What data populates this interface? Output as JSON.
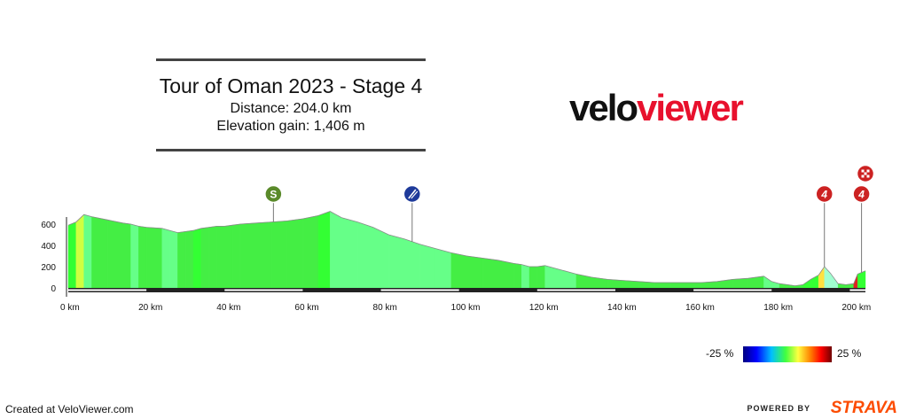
{
  "header": {
    "title": "Tour of Oman 2023 - Stage 4",
    "distance": "Distance: 204.0 km",
    "elevation_gain": "Elevation gain: 1,406 m"
  },
  "logo": {
    "part1": "velo",
    "part2": "viewer"
  },
  "legend": {
    "min_label": "-25 %",
    "max_label": "25 %"
  },
  "footer": {
    "created": "Created at VeloViewer.com",
    "powered": "POWERED BY",
    "brand": "STRAVA"
  },
  "colors": {
    "steep_climb": "#e02020",
    "flat": "#44ee44",
    "descent": "#aaffdd",
    "sprint_marker": "#5a8a2a",
    "feed_marker": "#1e3a9a",
    "kom_marker": "#cc2222"
  },
  "chart_data": {
    "type": "area",
    "title": "Tour of Oman 2023 - Stage 4",
    "xlabel": "",
    "ylabel": "",
    "xlim": [
      0,
      204
    ],
    "ylim": [
      0,
      700
    ],
    "x_ticks": [
      0,
      20,
      40,
      60,
      80,
      100,
      120,
      140,
      160,
      180,
      200
    ],
    "x_tick_labels": [
      "0 km",
      "20 km",
      "40 km",
      "60 km",
      "80 km",
      "100 km",
      "120 km",
      "140 km",
      "160 km",
      "180 km",
      "200 km"
    ],
    "y_ticks": [
      0,
      200,
      400,
      600
    ],
    "y_tick_labels": [
      "0",
      "200",
      "400",
      "600"
    ],
    "series": [
      {
        "points": [
          [
            0,
            590
          ],
          [
            2,
            620
          ],
          [
            4,
            690
          ],
          [
            6,
            670
          ],
          [
            10,
            640
          ],
          [
            14,
            610
          ],
          [
            16,
            600
          ],
          [
            18,
            580
          ],
          [
            20,
            570
          ],
          [
            24,
            560
          ],
          [
            26,
            540
          ],
          [
            28,
            520
          ],
          [
            30,
            530
          ],
          [
            32,
            540
          ],
          [
            34,
            560
          ],
          [
            36,
            570
          ],
          [
            38,
            580
          ],
          [
            40,
            580
          ],
          [
            42,
            590
          ],
          [
            44,
            600
          ],
          [
            48,
            610
          ],
          [
            52,
            620
          ],
          [
            56,
            630
          ],
          [
            60,
            650
          ],
          [
            64,
            680
          ],
          [
            67,
            720
          ],
          [
            70,
            660
          ],
          [
            74,
            620
          ],
          [
            78,
            570
          ],
          [
            82,
            500
          ],
          [
            86,
            460
          ],
          [
            90,
            410
          ],
          [
            94,
            370
          ],
          [
            98,
            330
          ],
          [
            102,
            300
          ],
          [
            106,
            280
          ],
          [
            110,
            260
          ],
          [
            114,
            230
          ],
          [
            116,
            220
          ],
          [
            118,
            200
          ],
          [
            120,
            200
          ],
          [
            122,
            210
          ],
          [
            126,
            170
          ],
          [
            130,
            130
          ],
          [
            134,
            100
          ],
          [
            138,
            80
          ],
          [
            142,
            70
          ],
          [
            146,
            60
          ],
          [
            150,
            50
          ],
          [
            154,
            50
          ],
          [
            158,
            50
          ],
          [
            162,
            50
          ],
          [
            166,
            60
          ],
          [
            170,
            80
          ],
          [
            174,
            90
          ],
          [
            178,
            110
          ],
          [
            180,
            60
          ],
          [
            182,
            40
          ],
          [
            184,
            30
          ],
          [
            186,
            20
          ],
          [
            188,
            30
          ],
          [
            190,
            80
          ],
          [
            192,
            120
          ],
          [
            193.5,
            200
          ],
          [
            195,
            140
          ],
          [
            197,
            40
          ],
          [
            199,
            30
          ],
          [
            201,
            40
          ],
          [
            202,
            130
          ],
          [
            204,
            160
          ]
        ]
      }
    ],
    "markers": [
      {
        "km": 52.5,
        "label": "S",
        "type": "sprint"
      },
      {
        "km": 88,
        "label": "feed",
        "type": "feed"
      },
      {
        "km": 193.5,
        "label": "4",
        "type": "kom"
      },
      {
        "km": 203,
        "label": "4",
        "type": "kom"
      },
      {
        "km": 204,
        "label": "finish",
        "type": "finish"
      }
    ]
  }
}
